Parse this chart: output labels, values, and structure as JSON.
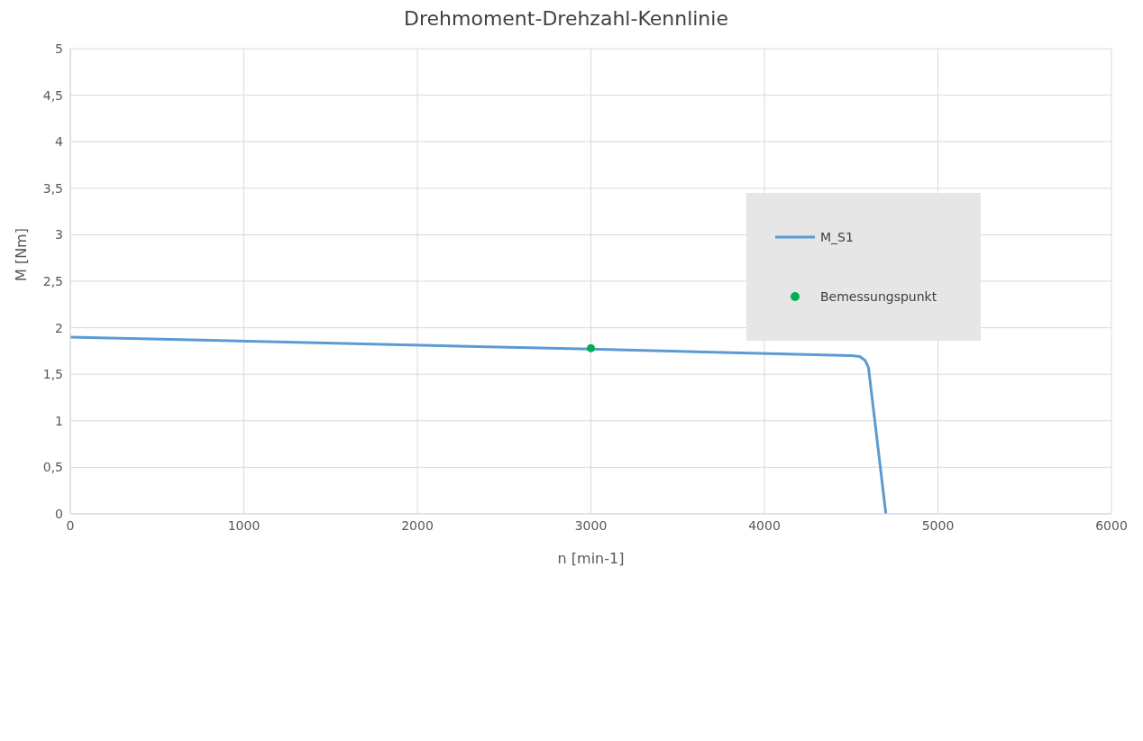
{
  "chart_data": {
    "type": "line",
    "title": "Drehmoment-Drehzahl-Kennlinie",
    "xlabel": "n [min-1]",
    "ylabel": "M [Nm]",
    "series": [
      {
        "name": "M_S1",
        "color": "#5b9bd5",
        "marker": "none",
        "x": [
          0,
          3000,
          4500,
          4550,
          4580,
          4600,
          4700
        ],
        "values": [
          1.9,
          1.77,
          1.7,
          1.69,
          1.65,
          1.57,
          0
        ]
      },
      {
        "name": "Bemessungspunkt",
        "type": "scatter",
        "marker": "circle",
        "color": "#00b050",
        "x": [
          3000
        ],
        "values": [
          1.78
        ]
      }
    ],
    "xlim": [
      0,
      6000
    ],
    "xticks": [
      0,
      1000,
      2000,
      3000,
      4000,
      5000,
      6000
    ],
    "ylim": [
      0,
      5
    ],
    "yticks": [
      0,
      {
        "value": 0.5,
        "label": "0,5"
      },
      1,
      {
        "value": 1.5,
        "label": "1,5"
      },
      2,
      {
        "value": 2.5,
        "label": "2,5"
      },
      3,
      {
        "value": 3.5,
        "label": "3,5"
      },
      4,
      {
        "value": 4.5,
        "label": "4,5"
      },
      5
    ],
    "grid": true,
    "legend": "top right",
    "line_style": "solid"
  }
}
